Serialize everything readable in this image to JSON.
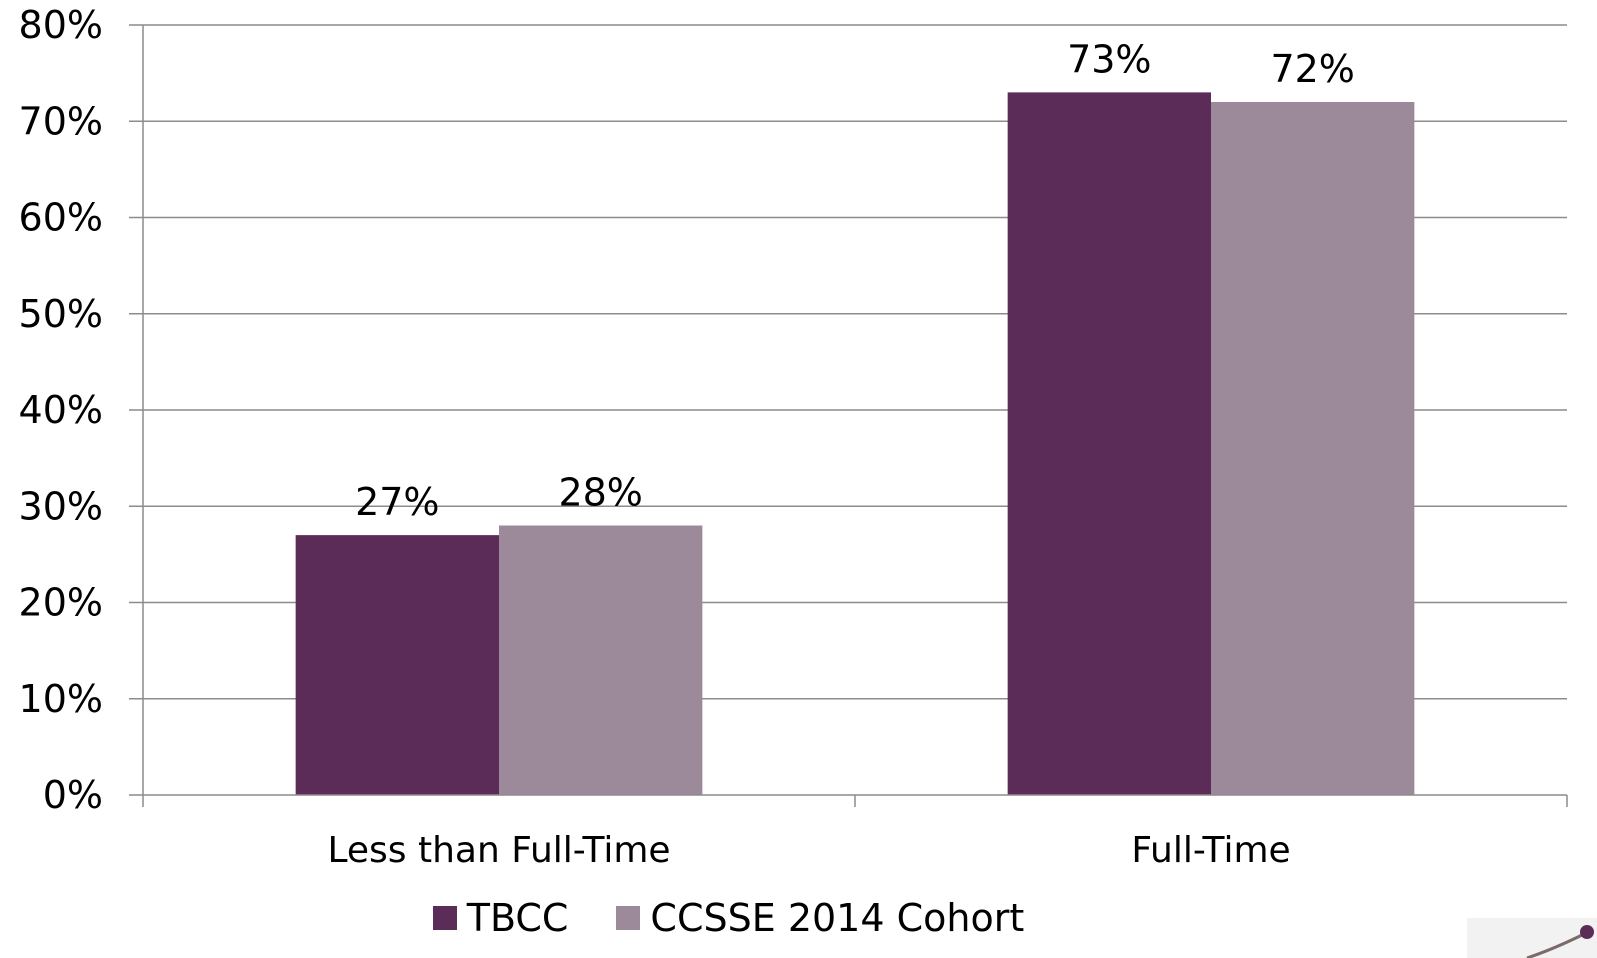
{
  "chart_data": {
    "type": "bar",
    "categories": [
      "Less than Full-Time",
      "Full-Time"
    ],
    "series": [
      {
        "name": "TBCC",
        "values": [
          27,
          73
        ],
        "labels": [
          "27%",
          "73%"
        ],
        "color": "#5b2c57"
      },
      {
        "name": "CCSSE 2014 Cohort",
        "values": [
          28,
          72
        ],
        "labels": [
          "28%",
          "72%"
        ],
        "color": "#9c8999"
      }
    ],
    "ylim": [
      0,
      80
    ],
    "yticks": [
      "0%",
      "10%",
      "20%",
      "30%",
      "40%",
      "50%",
      "60%",
      "70%",
      "80%"
    ],
    "grid": true,
    "legend_position": "bottom"
  },
  "legend": {
    "items": [
      {
        "label": "TBCC",
        "color": "#5b2c57"
      },
      {
        "label": "CCSSE 2014 Cohort",
        "color": "#9c8999"
      }
    ]
  }
}
